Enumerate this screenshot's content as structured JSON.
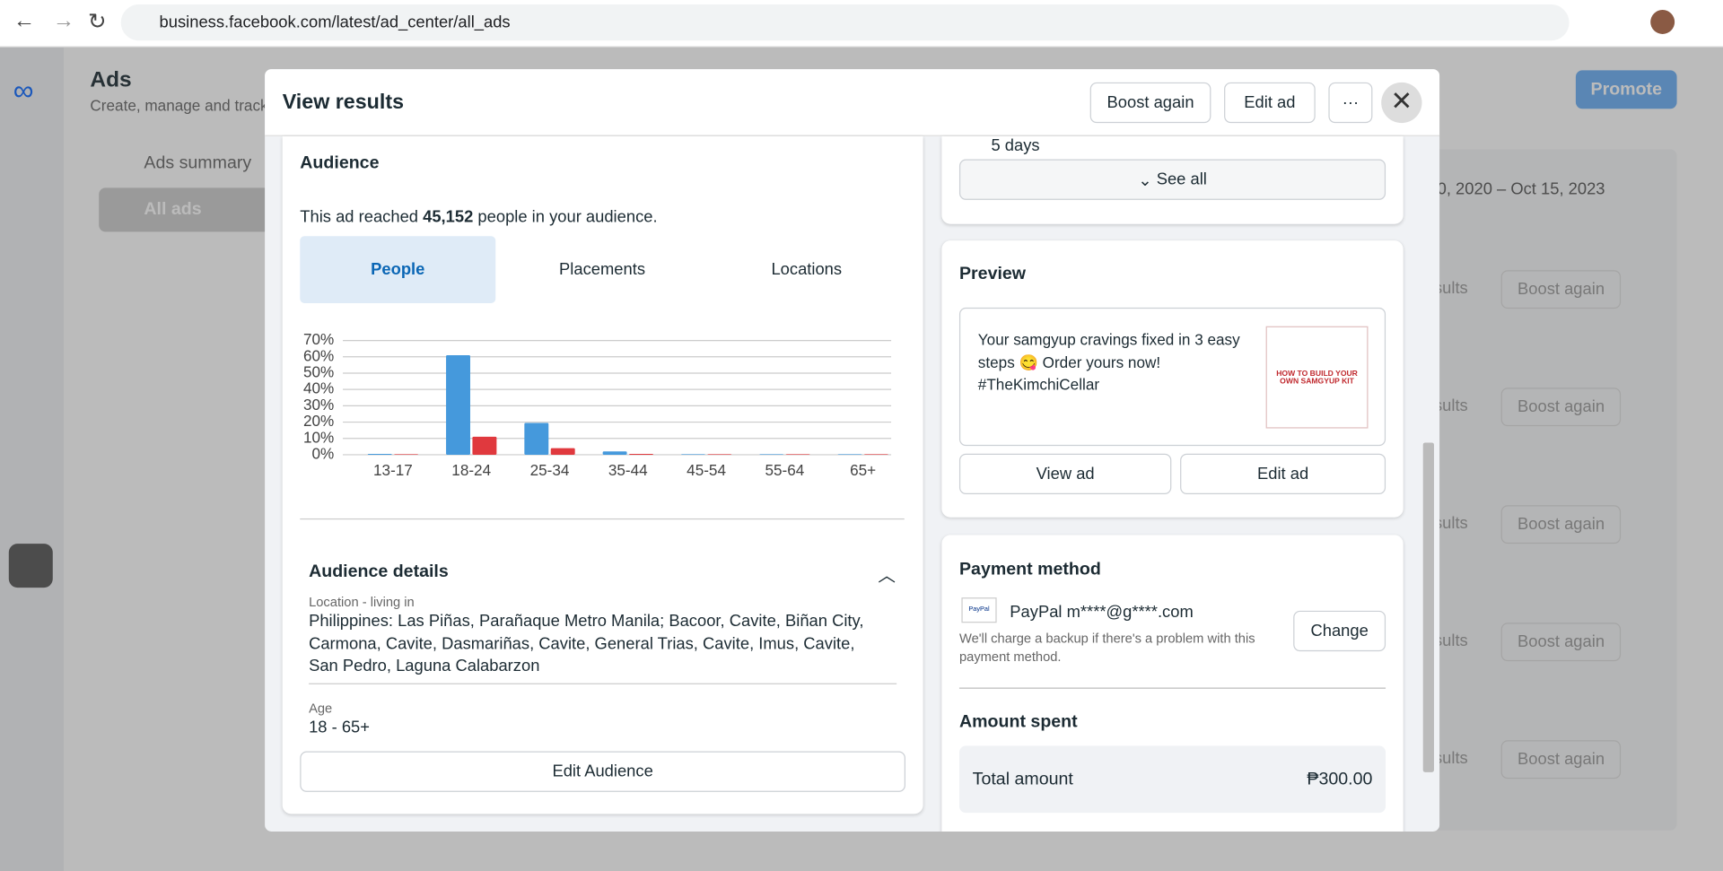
{
  "browser": {
    "url": "business.facebook.com/latest/ad_center/all_ads"
  },
  "background": {
    "title": "Ads",
    "subtitle": "Create, manage and track",
    "nav": [
      "Ads summary",
      "All ads"
    ],
    "promote": "Promote",
    "date_range": "0, 2020 – Oct 15, 2023",
    "rows": [
      [
        "sults",
        "Boost again"
      ],
      [
        "sults",
        "Boost again"
      ],
      [
        "sults",
        "Boost again"
      ],
      [
        "sults",
        "Boost again"
      ],
      [
        "sults",
        "Boost again"
      ]
    ]
  },
  "modal": {
    "title": "View results",
    "buttons": [
      "Boost again",
      "Edit ad"
    ],
    "audience": {
      "heading": "Audience",
      "reach_before": "This ad reached",
      "reach_count": "45,152",
      "reach_after": "people in your audience.",
      "tabs": [
        "People",
        "Placements",
        "Locations"
      ],
      "details_heading": "Audience details",
      "location_label": "Location - living in",
      "location": "Philippines: Las Piñas, Parañaque Metro Manila; Bacoor, Cavite, Biñan City, Carmona, Cavite, Dasmariñas, Cavite, General Trias, Cavite, Imus, Cavite, San Pedro, Laguna Calabarzon",
      "age_label": "Age",
      "age": "18 - 65+",
      "edit_button": "Edit Audience"
    },
    "schedule": {
      "duration": "5 days",
      "see_all": "See all"
    },
    "preview": {
      "heading": "Preview",
      "text": "Your samgyup cravings fixed in 3 easy steps 😋 Order yours now! #TheKimchiCellar",
      "image_text": "HOW TO BUILD YOUR OWN SAMGYUP KIT",
      "buttons": [
        "View ad",
        "Edit ad"
      ]
    },
    "payment": {
      "heading": "Payment method",
      "account": "PayPal m****@g****.com",
      "note": "We'll charge a backup if there's a problem with this payment method.",
      "change": "Change"
    },
    "amount": {
      "heading": "Amount spent",
      "label": "Total amount",
      "value": "₱300.00"
    }
  },
  "chart_data": {
    "type": "bar",
    "categories": [
      "13-17",
      "18-24",
      "25-34",
      "35-44",
      "45-54",
      "55-64",
      "65+"
    ],
    "series": [
      {
        "color": "#4599dc",
        "values": [
          0.5,
          61,
          19.5,
          2,
          0.3,
          0.3,
          0.3
        ]
      },
      {
        "color": "#e0393e",
        "values": [
          0.3,
          11,
          4,
          0.5,
          0.3,
          0.3,
          0.3
        ]
      }
    ],
    "ylim": [
      0,
      70
    ],
    "yticks": [
      {
        "value": 0,
        "label": "0%"
      },
      {
        "value": 10,
        "label": "10%"
      },
      {
        "value": 20,
        "label": "20%"
      },
      {
        "value": 30,
        "label": "30%"
      },
      {
        "value": 40,
        "label": "40%"
      },
      {
        "value": 50,
        "label": "50%"
      },
      {
        "value": 60,
        "label": "60%"
      },
      {
        "value": 70,
        "label": "70%"
      }
    ],
    "grid": true
  }
}
